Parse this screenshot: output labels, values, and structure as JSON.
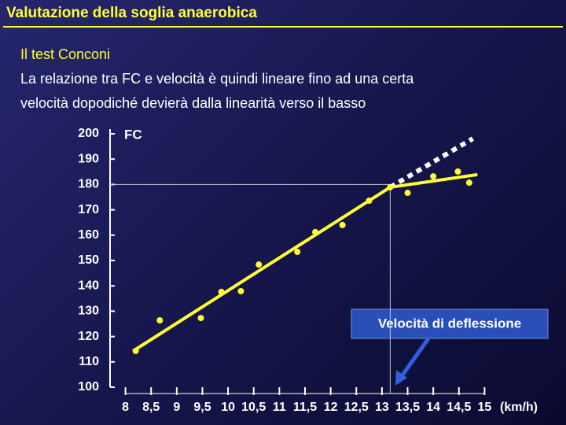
{
  "header": {
    "title": "Valutazione della soglia anaerobica"
  },
  "text": {
    "heading": "Il test Conconi",
    "lines": [
      "La relazione tra FC e velocità è quindi lineare fino ad una certa",
      "velocità dopodiché devierà dalla linearità verso il basso"
    ]
  },
  "chart_data": {
    "type": "scatter",
    "y_label": "FC",
    "x_label": "(km/h)",
    "annotation": "Velocità di deflessione",
    "x": [
      8.2,
      8.67,
      9.47,
      9.87,
      10.25,
      10.6,
      11.35,
      11.7,
      12.23,
      12.75,
      13.16,
      13.5,
      14.0,
      14.48,
      14.7
    ],
    "values": [
      114.3,
      126.4,
      127.3,
      137.6,
      137.9,
      148.4,
      153.4,
      161.2,
      164,
      173.6,
      178.9,
      176.7,
      183.2,
      185.1,
      180.7
    ],
    "color": "#ffff33",
    "fit_line": {
      "x": [
        8.15,
        13.16,
        14.86
      ],
      "values": [
        114.3,
        178.9,
        183.9
      ]
    },
    "extrapolation": {
      "x": [
        13.16,
        14.77
      ],
      "values": [
        178.9,
        198.1
      ]
    },
    "deflection": {
      "x": 13.16,
      "y": 180
    },
    "xlim": [
      7.7,
      15.3
    ],
    "ylim": [
      100,
      200
    ],
    "xticks": [
      8,
      {
        "value": 8.5,
        "label": "8,5"
      },
      9,
      {
        "value": 9.5,
        "label": "9,5"
      },
      10,
      {
        "value": 10.5,
        "label": "10,5"
      },
      11,
      {
        "value": 11.5,
        "label": "11,5"
      },
      12,
      {
        "value": 12.5,
        "label": "12,5"
      },
      13,
      {
        "value": 13.5,
        "label": "13,5"
      },
      14,
      {
        "value": 14.5,
        "label": "14,5"
      },
      15
    ],
    "yticks": [
      100,
      110,
      120,
      130,
      140,
      150,
      160,
      170,
      180,
      190,
      200
    ]
  }
}
